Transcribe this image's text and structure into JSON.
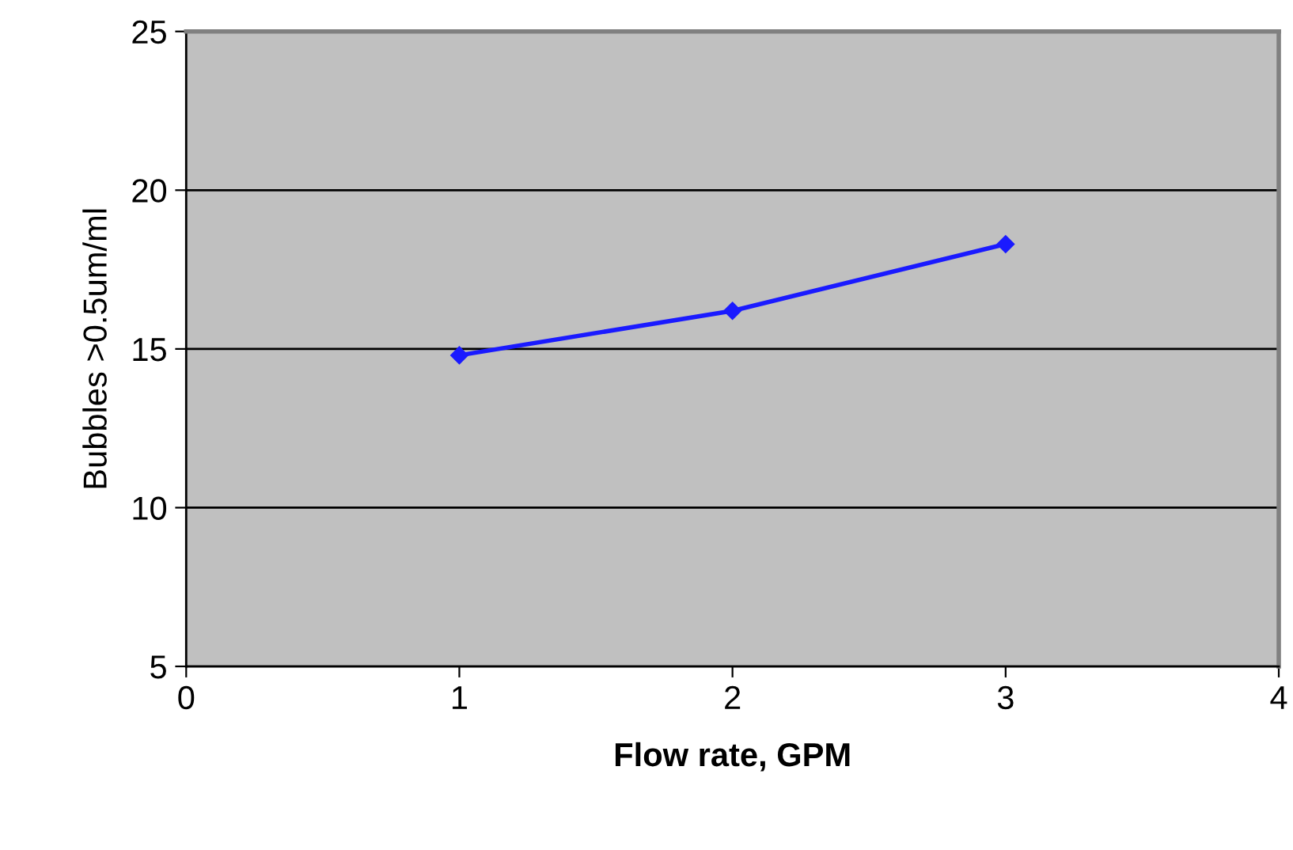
{
  "chart_data": {
    "type": "line",
    "xlabel": "Flow rate, GPM",
    "ylabel": "Bubbles >0.5um/ml",
    "x": [
      1,
      2,
      3
    ],
    "series": [
      {
        "color": "#1a1aff",
        "values": [
          14.8,
          16.2,
          18.3
        ]
      }
    ],
    "xlim": [
      0,
      4
    ],
    "xticks": [
      0,
      1,
      2,
      3,
      4
    ],
    "ylim": [
      5,
      25
    ],
    "yticks": [
      5,
      10,
      15,
      20,
      25
    ],
    "grid": "y",
    "marker": "diamond",
    "line_style": "solid"
  }
}
